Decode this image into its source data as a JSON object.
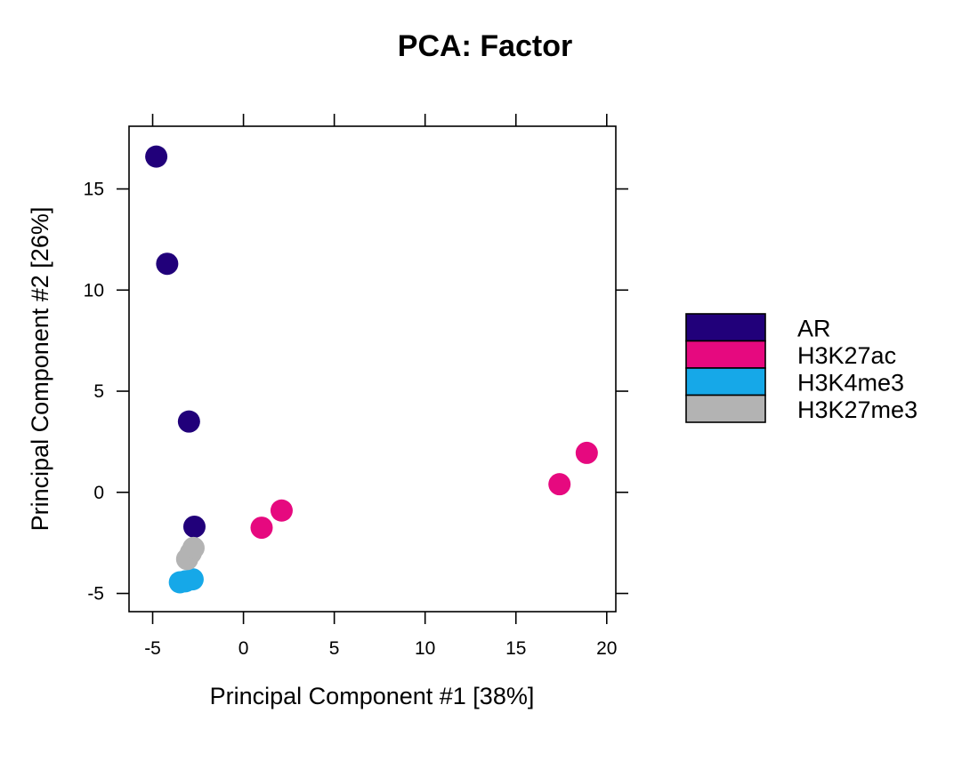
{
  "chart_data": {
    "type": "scatter",
    "title": "PCA: Factor",
    "xlabel": "Principal Component #1 [38%]",
    "ylabel": "Principal Component #2 [26%]",
    "xlim": [
      -6.3,
      20.5
    ],
    "ylim": [
      -5.9,
      18.1
    ],
    "xticks": [
      -5,
      0,
      5,
      10,
      15,
      20
    ],
    "yticks": [
      -5,
      0,
      5,
      10,
      15
    ],
    "grid": false,
    "legend_position": "right",
    "series": [
      {
        "name": "AR",
        "color": "#21007A",
        "points": [
          {
            "x": -4.8,
            "y": 16.6
          },
          {
            "x": -4.2,
            "y": 11.3
          },
          {
            "x": -3.0,
            "y": 3.5
          },
          {
            "x": -2.7,
            "y": -1.7
          }
        ]
      },
      {
        "name": "H3K27ac",
        "color": "#E6097F",
        "points": [
          {
            "x": 1.0,
            "y": -1.75
          },
          {
            "x": 2.1,
            "y": -0.9
          },
          {
            "x": 17.4,
            "y": 0.4
          },
          {
            "x": 18.9,
            "y": 1.95
          }
        ]
      },
      {
        "name": "H3K4me3",
        "color": "#16A8E8",
        "points": [
          {
            "x": -3.5,
            "y": -4.45
          },
          {
            "x": -3.2,
            "y": -4.4
          },
          {
            "x": -2.8,
            "y": -4.3
          }
        ]
      },
      {
        "name": "H3K27me3",
        "color": "#B3B3B3",
        "points": [
          {
            "x": -3.1,
            "y": -3.3
          },
          {
            "x": -2.9,
            "y": -3.0
          },
          {
            "x": -2.75,
            "y": -2.75
          }
        ]
      }
    ]
  }
}
